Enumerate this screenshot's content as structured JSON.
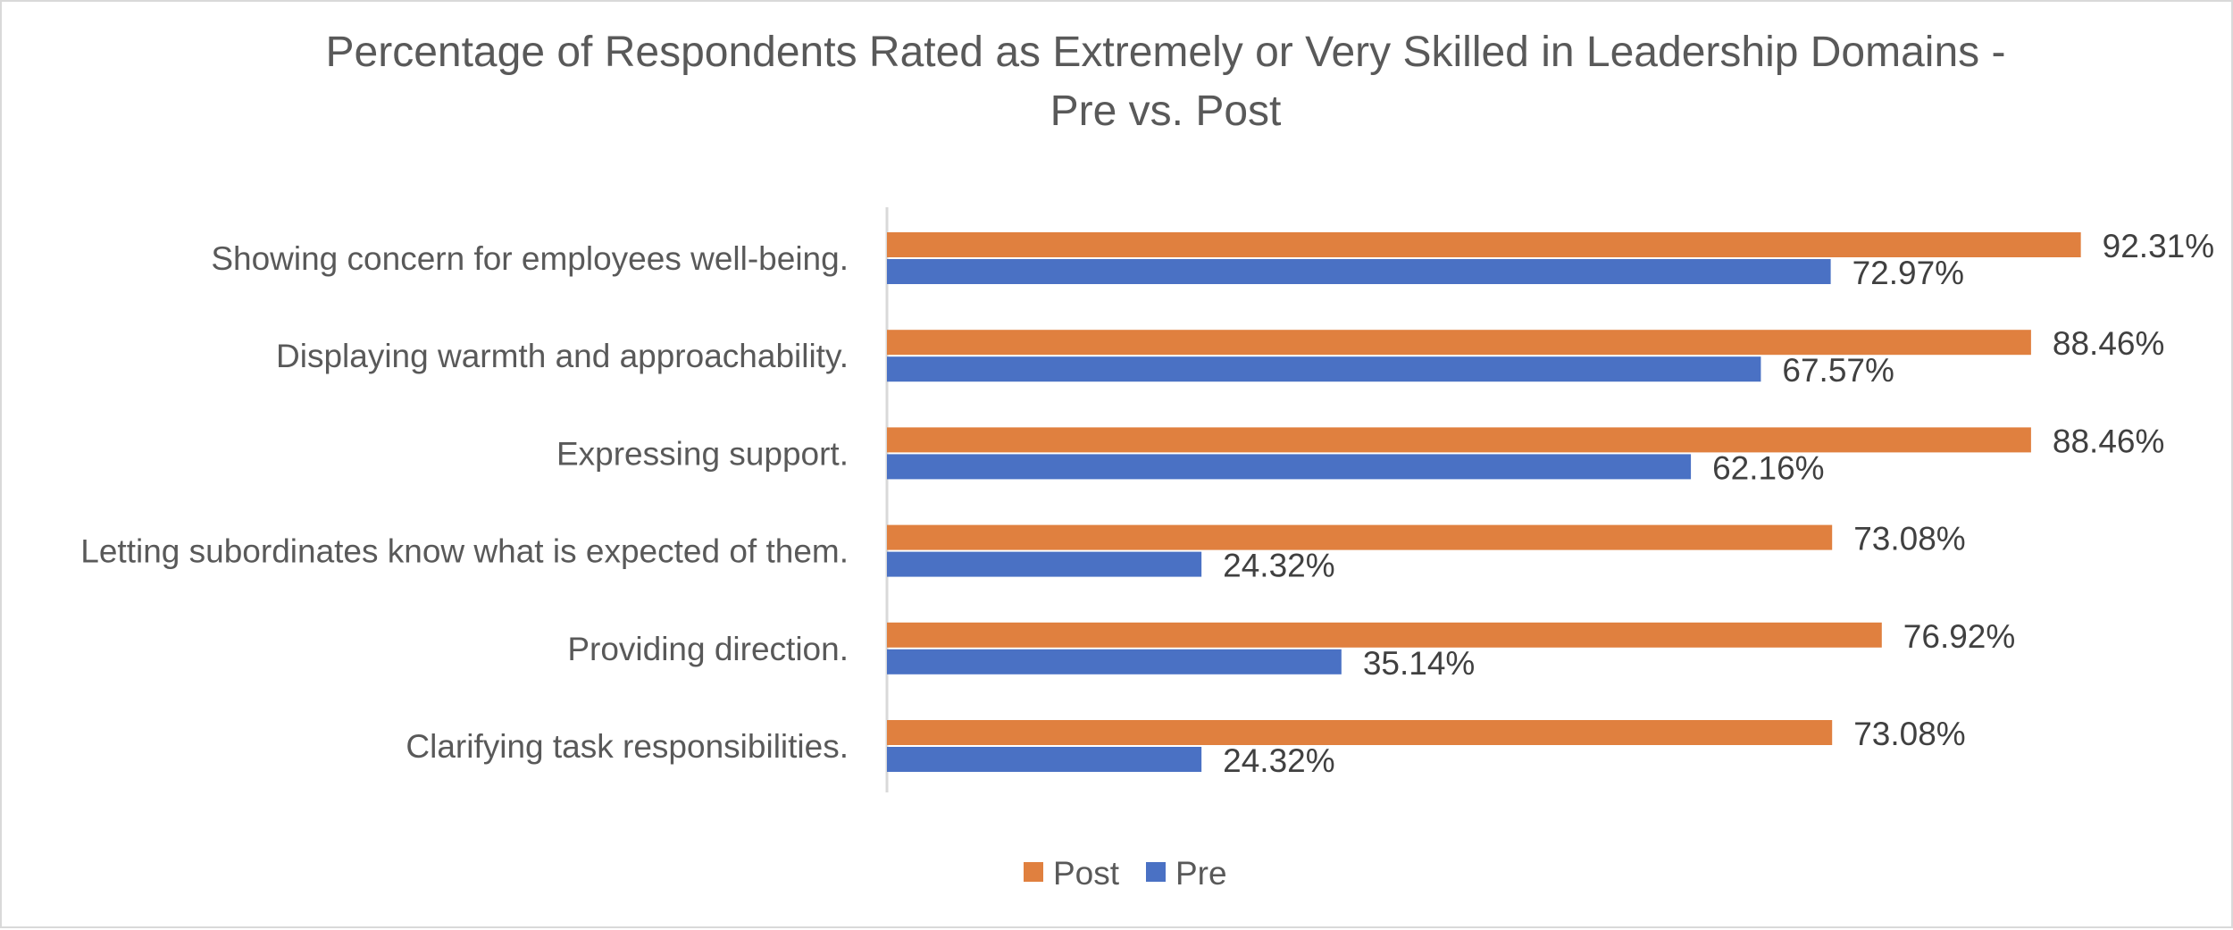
{
  "chart_data": {
    "type": "bar",
    "orientation": "horizontal",
    "title_lines": [
      "Percentage of Respondents Rated as Extremely or Very Skilled in Leadership Domains -",
      "Pre vs. Post"
    ],
    "categories": [
      "Showing concern for employees well-being.",
      "Displaying warmth and approachability.",
      "Expressing support.",
      "Letting subordinates know what is expected of them.",
      "Providing direction.",
      "Clarifying task responsibilities."
    ],
    "series": [
      {
        "name": "Post",
        "color": "#E0803F",
        "values": [
          92.31,
          88.46,
          88.46,
          73.08,
          76.92,
          73.08
        ],
        "labels": [
          "92.31%",
          "88.46%",
          "88.46%",
          "73.08%",
          "76.92%",
          "73.08%"
        ]
      },
      {
        "name": "Pre",
        "color": "#4A71C4",
        "values": [
          72.97,
          67.57,
          62.16,
          24.32,
          35.14,
          24.32
        ],
        "labels": [
          "72.97%",
          "67.57%",
          "62.16%",
          "24.32%",
          "35.14%",
          "24.32%"
        ]
      }
    ],
    "xlim": [
      0,
      100
    ],
    "grid": false,
    "legend_position": "bottom",
    "axis_line_color": "#d9d9d9"
  }
}
